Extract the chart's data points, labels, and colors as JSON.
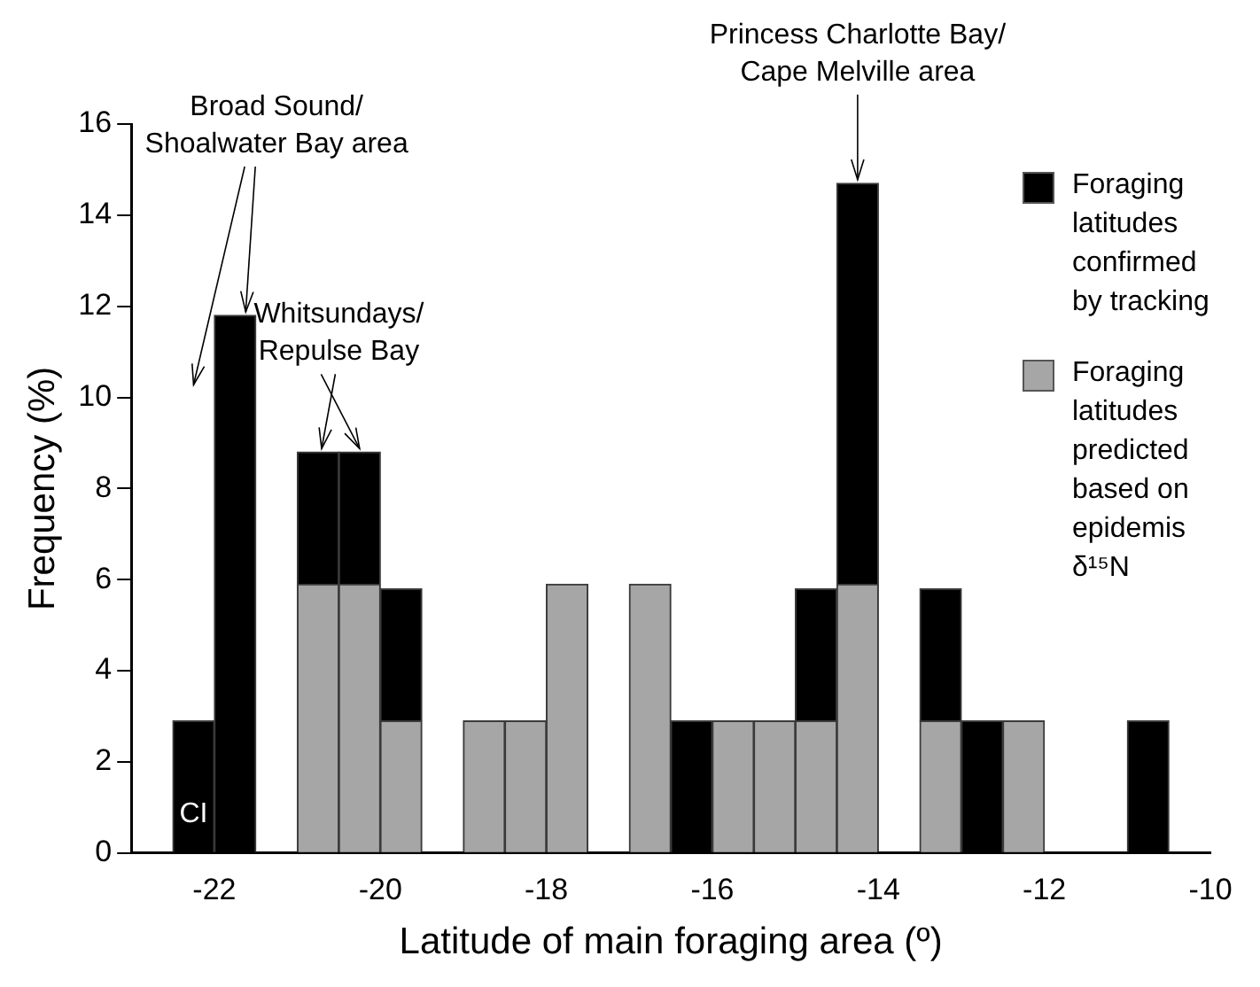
{
  "chart_data": {
    "type": "bar",
    "stacked": true,
    "xlabel": "Latitude of main foraging area (º)",
    "ylabel": "Frequency (%)",
    "x": [
      -22.25,
      -21.75,
      -20.75,
      -20.25,
      -19.75,
      -18.75,
      -18.25,
      -17.75,
      -16.75,
      -16.25,
      -15.75,
      -15.25,
      -14.75,
      -14.25,
      -13.25,
      -12.75,
      -12.25,
      -10.75
    ],
    "series": [
      {
        "name": "Foraging latitudes predicted based on epidemis δ¹⁵N",
        "color": "#a6a6a6",
        "values": [
          null,
          null,
          5.9,
          5.9,
          2.9,
          2.9,
          2.9,
          5.9,
          5.9,
          null,
          2.9,
          2.9,
          2.9,
          5.9,
          2.9,
          null,
          2.9,
          null
        ]
      },
      {
        "name": "Foraging latitudes confirmed by tracking",
        "color": "#000000",
        "values": [
          2.9,
          11.8,
          2.9,
          2.9,
          2.9,
          null,
          null,
          null,
          null,
          2.9,
          null,
          null,
          2.9,
          8.8,
          2.9,
          2.9,
          null,
          2.9
        ]
      }
    ],
    "xlim": [
      -23,
      -10
    ],
    "xticks": [
      -22,
      -20,
      -18,
      -16,
      -14,
      -12,
      -10
    ],
    "ylim": [
      0,
      16
    ],
    "yticks": [
      0,
      2,
      4,
      6,
      8,
      10,
      12,
      14,
      16
    ],
    "grid": false,
    "legend": "top right",
    "annotations": [
      {
        "text": "Broad Sound/\nShoalwater Bay area",
        "x": -21.75,
        "y": 11.8
      },
      {
        "text": "Whitsundays/\nRepulse Bay",
        "x": -20.75,
        "y": 8.8
      },
      {
        "text": "Princess Charlotte Bay/\nCape Melville area",
        "x": -14.25,
        "y": 14.7
      },
      "CI"
    ]
  }
}
